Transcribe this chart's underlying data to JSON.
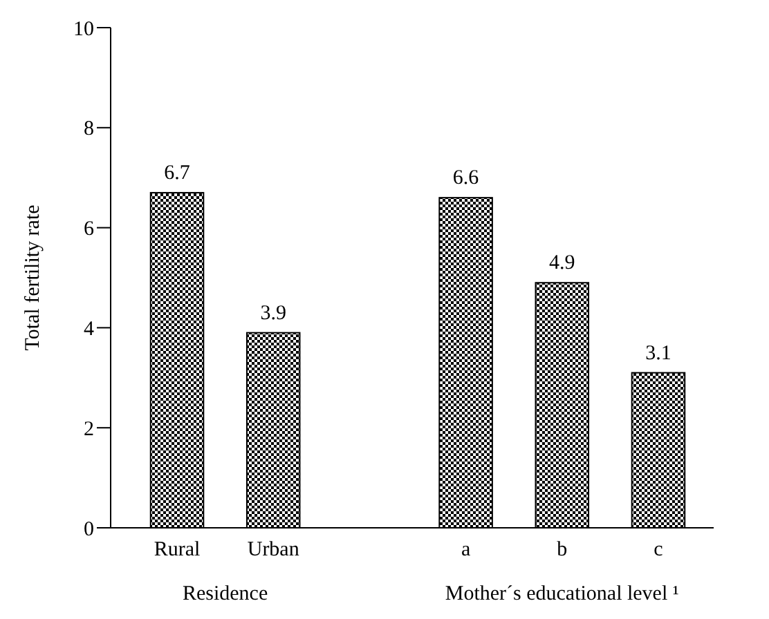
{
  "chart_data": {
    "type": "bar",
    "ylabel": "Total fertility rate",
    "categories": [
      "Rural",
      "Urban",
      null,
      "a",
      "b",
      "c"
    ],
    "values": [
      6.7,
      3.9,
      null,
      6.6,
      4.9,
      3.1
    ],
    "color": "#000000",
    "ylim": [
      0,
      10
    ],
    "yticks": [
      0,
      2,
      4,
      6,
      8,
      10
    ],
    "data_labels": true,
    "grid": false,
    "annotations": [
      "Residence",
      "Mother´s educational level ¹"
    ]
  }
}
